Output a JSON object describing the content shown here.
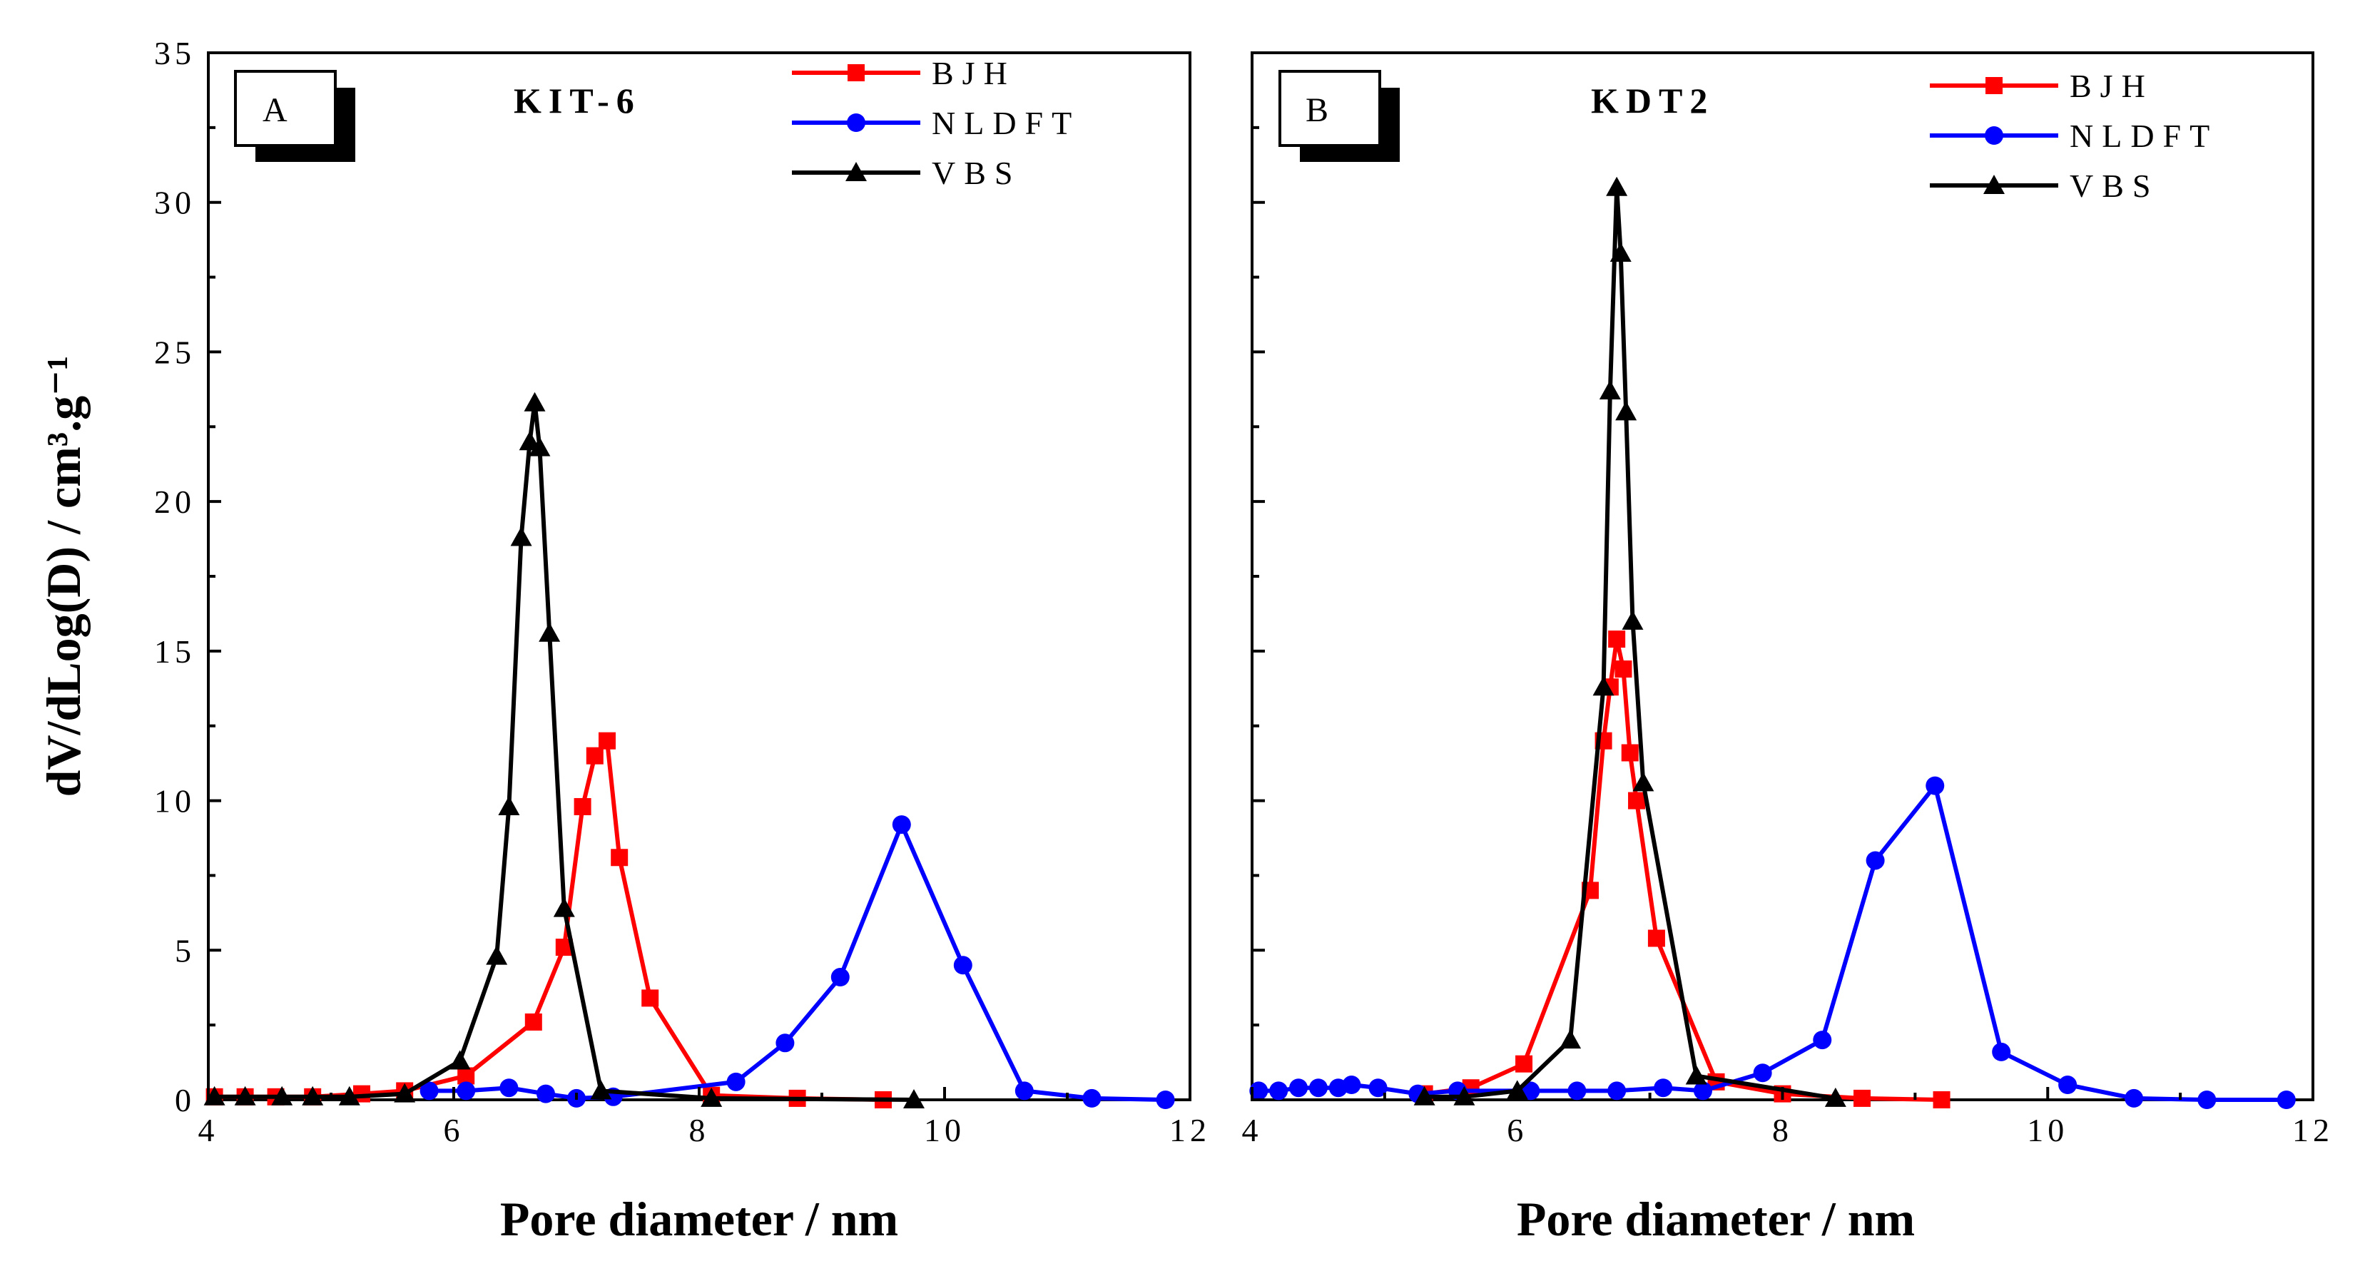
{
  "chart_data": [
    {
      "type": "line",
      "panel_label": "A",
      "title": "KIT-6",
      "xlabel": "Pore diameter / nm",
      "ylabel": "dV/dLog(D) / cm³.g⁻¹",
      "xlim": [
        4,
        12
      ],
      "ylim": [
        0,
        35
      ],
      "xticks": [
        4,
        6,
        8,
        10,
        12
      ],
      "yticks": [
        0,
        5,
        10,
        15,
        20,
        25,
        30,
        35
      ],
      "tick_labels_x": [
        "4",
        "6",
        "8",
        "10",
        "12"
      ],
      "tick_labels_y": [
        "0",
        "5",
        "10",
        "15",
        "20",
        "25",
        "30",
        "35"
      ],
      "legend_position": "top-right",
      "series": [
        {
          "name": "BJH",
          "color": "#ff0000",
          "marker": "square",
          "x": [
            4.05,
            4.3,
            4.55,
            4.85,
            5.25,
            5.6,
            6.1,
            6.65,
            6.9,
            7.05,
            7.15,
            7.25,
            7.35,
            7.6,
            8.1,
            8.8,
            9.5
          ],
          "y": [
            0.1,
            0.1,
            0.1,
            0.1,
            0.2,
            0.3,
            0.8,
            2.6,
            5.1,
            9.8,
            11.5,
            12.0,
            8.1,
            3.4,
            0.15,
            0.05,
            0.0
          ]
        },
        {
          "name": "NLDFT",
          "color": "#0000ff",
          "marker": "circle",
          "x": [
            5.8,
            6.1,
            6.45,
            6.75,
            7.0,
            7.3,
            8.3,
            8.7,
            9.15,
            9.65,
            10.15,
            10.65,
            11.2,
            11.8
          ],
          "y": [
            0.3,
            0.3,
            0.4,
            0.2,
            0.05,
            0.1,
            0.6,
            1.9,
            4.1,
            9.2,
            4.5,
            0.3,
            0.05,
            0.0
          ]
        },
        {
          "name": "VBS",
          "color": "#000000",
          "marker": "triangle",
          "x": [
            4.05,
            4.3,
            4.6,
            4.85,
            5.15,
            5.6,
            6.05,
            6.35,
            6.45,
            6.55,
            6.62,
            6.66,
            6.7,
            6.78,
            6.9,
            7.2,
            8.1,
            9.75
          ],
          "y": [
            0.1,
            0.1,
            0.1,
            0.1,
            0.1,
            0.2,
            1.3,
            4.8,
            9.8,
            18.8,
            22.0,
            23.3,
            21.8,
            15.6,
            6.4,
            0.3,
            0.05,
            0.0
          ]
        }
      ]
    },
    {
      "type": "line",
      "panel_label": "B",
      "title": "KDT2",
      "xlabel": "Pore diameter / nm",
      "ylabel": "",
      "xlim": [
        4,
        12
      ],
      "ylim": [
        0,
        35
      ],
      "xticks": [
        4,
        6,
        8,
        10,
        12
      ],
      "yticks": [
        0,
        5,
        10,
        15,
        20,
        25,
        30,
        35
      ],
      "tick_labels_x": [
        "4",
        "6",
        "8",
        "10",
        "12"
      ],
      "legend_position": "top-right",
      "series": [
        {
          "name": "BJH",
          "color": "#ff0000",
          "marker": "square",
          "x": [
            5.3,
            5.65,
            6.05,
            6.55,
            6.65,
            6.7,
            6.75,
            6.8,
            6.85,
            6.9,
            7.05,
            7.5,
            8.0,
            8.6,
            9.2
          ],
          "y": [
            0.2,
            0.4,
            1.2,
            7.0,
            12.0,
            13.8,
            15.4,
            14.4,
            11.6,
            10.0,
            5.4,
            0.6,
            0.2,
            0.05,
            0.0
          ]
        },
        {
          "name": "NLDFT",
          "color": "#0000ff",
          "marker": "circle",
          "x": [
            4.05,
            4.2,
            4.35,
            4.5,
            4.65,
            4.75,
            4.95,
            5.25,
            5.55,
            6.1,
            6.45,
            6.75,
            7.1,
            7.4,
            7.85,
            8.3,
            8.7,
            9.15,
            9.65,
            10.15,
            10.65,
            11.2,
            11.8
          ],
          "y": [
            0.3,
            0.3,
            0.4,
            0.4,
            0.4,
            0.5,
            0.4,
            0.2,
            0.3,
            0.3,
            0.3,
            0.3,
            0.4,
            0.3,
            0.9,
            2.0,
            8.0,
            10.5,
            1.6,
            0.5,
            0.05,
            0.0,
            0.0
          ]
        },
        {
          "name": "VBS",
          "color": "#000000",
          "marker": "triangle",
          "x": [
            5.3,
            5.6,
            6.0,
            6.4,
            6.65,
            6.7,
            6.75,
            6.78,
            6.82,
            6.87,
            6.95,
            7.35,
            8.4
          ],
          "y": [
            0.1,
            0.1,
            0.3,
            2.0,
            13.8,
            23.7,
            30.5,
            28.3,
            23.0,
            16.0,
            10.6,
            0.8,
            0.05
          ]
        }
      ]
    }
  ]
}
